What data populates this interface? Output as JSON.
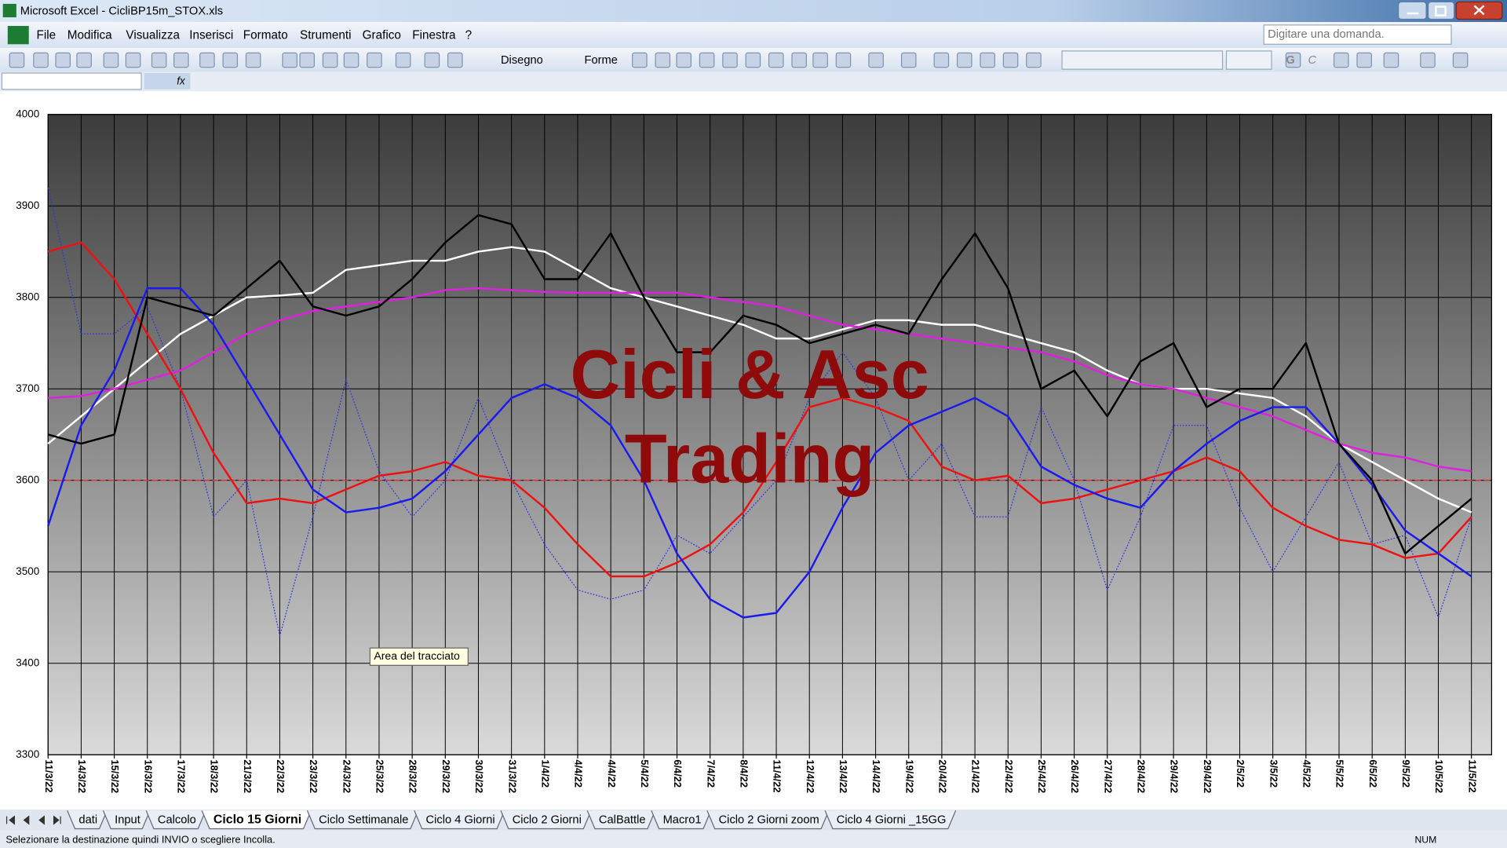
{
  "window": {
    "title": "Microsoft Excel - CicliBP15m_STOX.xls"
  },
  "menu": [
    "File",
    "Modifica",
    "Visualizza",
    "Inserisci",
    "Formato",
    "Strumenti",
    "Grafico",
    "Finestra",
    "?"
  ],
  "help_box": "Digitare una domanda.",
  "toolbar": {
    "drawing": "Disegno",
    "shapes": "Forme",
    "bold": "G",
    "italic": "C"
  },
  "formula_bar": {
    "function_button": "fx"
  },
  "chart_data": {
    "type": "line",
    "categories": [
      "11/3/22",
      "14/3/22",
      "15/3/22",
      "16/3/22",
      "17/3/22",
      "18/3/22",
      "21/3/22",
      "22/3/22",
      "23/3/22",
      "24/3/22",
      "25/3/22",
      "28/3/22",
      "29/3/22",
      "30/3/22",
      "31/3/22",
      "1/4/22",
      "4/4/22",
      "4/4/22",
      "5/4/22",
      "6/4/22",
      "7/4/22",
      "8/4/22",
      "11/4/22",
      "12/4/22",
      "13/4/22",
      "14/4/22",
      "19/4/22",
      "20/4/22",
      "21/4/22",
      "22/4/22",
      "25/4/22",
      "26/4/22",
      "27/4/22",
      "28/4/22",
      "29/4/22",
      "29/4/22",
      "2/5/22",
      "3/5/22",
      "4/5/22",
      "5/5/22",
      "6/5/22",
      "9/5/22",
      "10/5/22",
      "11/5/22"
    ],
    "ylim": [
      3300,
      4000
    ],
    "yticks": [
      3300,
      3400,
      3500,
      3600,
      3700,
      3800,
      3900,
      4000
    ],
    "grid": true,
    "annotations": [
      "Cicli & Asc",
      "Trading"
    ],
    "reference_line": {
      "value": 3600,
      "color": "#e03030",
      "style": "dashed"
    },
    "series": [
      {
        "color": "#3333dd",
        "style": "dotted",
        "values": [
          3920,
          3760,
          3760,
          3790,
          3700,
          3560,
          3600,
          3430,
          3560,
          3710,
          3610,
          3560,
          3600,
          3690,
          3600,
          3530,
          3480,
          3470,
          3480,
          3540,
          3520,
          3560,
          3600,
          3690,
          3740,
          3690,
          3600,
          3640,
          3560,
          3560,
          3680,
          3600,
          3480,
          3560,
          3660,
          3660,
          3570,
          3500,
          3560,
          3620,
          3530,
          3540,
          3450,
          3560
        ]
      },
      {
        "color": "#ffffff",
        "style": "solid",
        "values": [
          3640,
          3670,
          3700,
          3730,
          3760,
          3780,
          3800,
          3802,
          3805,
          3830,
          3835,
          3840,
          3840,
          3850,
          3855,
          3850,
          3830,
          3810,
          3800,
          3790,
          3780,
          3770,
          3755,
          3755,
          3765,
          3775,
          3775,
          3770,
          3770,
          3760,
          3750,
          3740,
          3720,
          3705,
          3700,
          3700,
          3695,
          3690,
          3670,
          3640,
          3620,
          3600,
          3580,
          3565
        ]
      },
      {
        "color": "#e020e0",
        "style": "solid",
        "values": [
          3690,
          3692,
          3700,
          3710,
          3720,
          3740,
          3760,
          3775,
          3785,
          3790,
          3795,
          3800,
          3808,
          3810,
          3808,
          3806,
          3805,
          3805,
          3805,
          3805,
          3800,
          3795,
          3790,
          3780,
          3770,
          3765,
          3760,
          3755,
          3750,
          3745,
          3740,
          3730,
          3715,
          3705,
          3700,
          3690,
          3680,
          3670,
          3655,
          3640,
          3630,
          3625,
          3615,
          3610
        ]
      },
      {
        "color": "#ee1111",
        "style": "solid",
        "values": [
          3850,
          3860,
          3820,
          3760,
          3700,
          3630,
          3575,
          3580,
          3575,
          3590,
          3605,
          3610,
          3620,
          3605,
          3600,
          3570,
          3530,
          3495,
          3495,
          3510,
          3530,
          3565,
          3620,
          3680,
          3690,
          3680,
          3665,
          3615,
          3600,
          3605,
          3575,
          3580,
          3590,
          3600,
          3610,
          3625,
          3610,
          3570,
          3550,
          3535,
          3530,
          3515,
          3520,
          3560
        ]
      },
      {
        "color": "#1a1aee",
        "style": "solid",
        "values": [
          3550,
          3660,
          3720,
          3810,
          3810,
          3770,
          3710,
          3650,
          3590,
          3565,
          3570,
          3580,
          3610,
          3650,
          3690,
          3705,
          3690,
          3660,
          3600,
          3520,
          3470,
          3450,
          3455,
          3500,
          3570,
          3630,
          3660,
          3675,
          3690,
          3670,
          3615,
          3595,
          3580,
          3570,
          3610,
          3640,
          3665,
          3680,
          3680,
          3640,
          3595,
          3545,
          3520,
          3495
        ]
      },
      {
        "color": "#000000",
        "style": "solid",
        "values": [
          3650,
          3640,
          3650,
          3800,
          3790,
          3780,
          3810,
          3840,
          3790,
          3780,
          3790,
          3820,
          3860,
          3890,
          3880,
          3820,
          3820,
          3870,
          3800,
          3740,
          3740,
          3780,
          3770,
          3750,
          3760,
          3770,
          3760,
          3820,
          3870,
          3810,
          3700,
          3720,
          3670,
          3730,
          3750,
          3680,
          3700,
          3700,
          3750,
          3640,
          3600,
          3520,
          3550,
          3580
        ]
      }
    ]
  },
  "tooltip": "Area del tracciato",
  "sheet_tabs": [
    {
      "label": "dati"
    },
    {
      "label": "Input"
    },
    {
      "label": "Calcolo"
    },
    {
      "label": "Ciclo 15 Giorni",
      "active": true
    },
    {
      "label": "Ciclo Settimanale"
    },
    {
      "label": "Ciclo 4 Giorni"
    },
    {
      "label": "Ciclo 2 Giorni"
    },
    {
      "label": "CalBattle"
    },
    {
      "label": "Macro1"
    },
    {
      "label": "Ciclo 2 Giorni zoom"
    },
    {
      "label": "Ciclo 4 Giorni _15GG"
    }
  ],
  "status_bar": {
    "message": "Selezionare la destinazione quindi INVIO o scegliere Incolla.",
    "indicator": "NUM"
  }
}
